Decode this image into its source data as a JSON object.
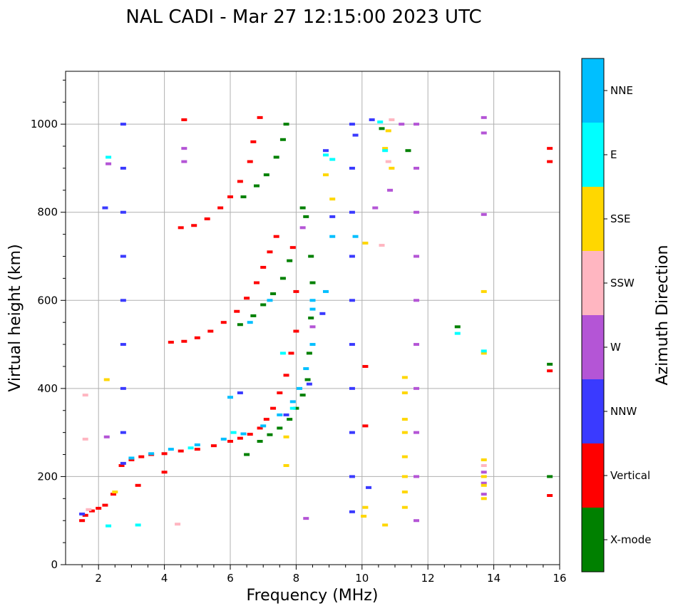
{
  "chart_data": {
    "type": "scatter",
    "title": "NAL CADI - Mar 27 12:15:00 2023 UTC",
    "xlabel": "Frequency (MHz)",
    "ylabel": "Virtual height (km)",
    "colorbar_label": "Azimuth Direction",
    "xlim": [
      1,
      16
    ],
    "ylim": [
      0,
      1120
    ],
    "xticks": [
      2,
      4,
      6,
      8,
      10,
      12,
      14,
      16
    ],
    "yticks": [
      0,
      200,
      400,
      600,
      800,
      1000
    ],
    "grid": true,
    "categories": [
      {
        "name": "X-mode",
        "color": "#008000"
      },
      {
        "name": "Vertical",
        "color": "#ff0000"
      },
      {
        "name": "NNW",
        "color": "#3a3aff"
      },
      {
        "name": "W",
        "color": "#b455d6"
      },
      {
        "name": "SSW",
        "color": "#ffb6c1"
      },
      {
        "name": "SSE",
        "color": "#ffd700"
      },
      {
        "name": "E",
        "color": "#00ffff"
      },
      {
        "name": "NNE",
        "color": "#00bfff"
      }
    ],
    "series": [
      {
        "name": "Vertical",
        "points": [
          [
            1.5,
            100
          ],
          [
            1.6,
            112
          ],
          [
            1.8,
            122
          ],
          [
            2.0,
            128
          ],
          [
            2.2,
            135
          ],
          [
            2.45,
            160
          ],
          [
            2.7,
            225
          ],
          [
            3.0,
            238
          ],
          [
            3.3,
            245
          ],
          [
            3.6,
            250
          ],
          [
            4.0,
            252
          ],
          [
            4.5,
            258
          ],
          [
            5.0,
            262
          ],
          [
            5.5,
            270
          ],
          [
            6.0,
            280
          ],
          [
            6.3,
            287
          ],
          [
            6.6,
            296
          ],
          [
            6.9,
            310
          ],
          [
            7.1,
            330
          ],
          [
            7.3,
            355
          ],
          [
            7.5,
            390
          ],
          [
            7.7,
            430
          ],
          [
            7.85,
            480
          ],
          [
            8.0,
            530
          ],
          [
            8.0,
            620
          ],
          [
            7.9,
            720
          ],
          [
            4.2,
            505
          ],
          [
            4.6,
            507
          ],
          [
            5.0,
            515
          ],
          [
            5.4,
            530
          ],
          [
            5.8,
            550
          ],
          [
            6.2,
            575
          ],
          [
            6.5,
            605
          ],
          [
            6.8,
            640
          ],
          [
            7.0,
            675
          ],
          [
            7.2,
            710
          ],
          [
            7.4,
            745
          ],
          [
            4.5,
            765
          ],
          [
            4.9,
            770
          ],
          [
            5.3,
            785
          ],
          [
            5.7,
            810
          ],
          [
            6.0,
            835
          ],
          [
            6.3,
            870
          ],
          [
            6.6,
            915
          ],
          [
            6.7,
            960
          ],
          [
            4.6,
            1010
          ],
          [
            6.9,
            1015
          ],
          [
            15.7,
            915
          ],
          [
            15.7,
            945
          ],
          [
            15.7,
            440
          ],
          [
            15.7,
            157
          ],
          [
            10.1,
            315
          ],
          [
            10.1,
            450
          ],
          [
            3.2,
            180
          ],
          [
            4.0,
            210
          ]
        ]
      },
      {
        "name": "X-mode",
        "points": [
          [
            6.5,
            250
          ],
          [
            6.9,
            280
          ],
          [
            7.2,
            295
          ],
          [
            7.5,
            310
          ],
          [
            7.8,
            330
          ],
          [
            8.0,
            355
          ],
          [
            8.2,
            385
          ],
          [
            8.35,
            420
          ],
          [
            8.4,
            480
          ],
          [
            8.45,
            560
          ],
          [
            8.5,
            640
          ],
          [
            8.45,
            700
          ],
          [
            6.3,
            545
          ],
          [
            6.7,
            565
          ],
          [
            7.0,
            590
          ],
          [
            7.3,
            615
          ],
          [
            7.6,
            650
          ],
          [
            7.8,
            690
          ],
          [
            6.4,
            835
          ],
          [
            6.8,
            860
          ],
          [
            7.1,
            885
          ],
          [
            7.4,
            925
          ],
          [
            7.6,
            965
          ],
          [
            7.7,
            1000
          ],
          [
            12.9,
            540
          ],
          [
            15.7,
            200
          ],
          [
            15.7,
            455
          ],
          [
            8.3,
            790
          ],
          [
            8.2,
            810
          ],
          [
            11.4,
            940
          ],
          [
            10.6,
            990
          ]
        ]
      },
      {
        "name": "NNW",
        "points": [
          [
            2.75,
            230
          ],
          [
            2.75,
            300
          ],
          [
            2.75,
            400
          ],
          [
            2.75,
            500
          ],
          [
            2.75,
            600
          ],
          [
            2.75,
            700
          ],
          [
            2.75,
            800
          ],
          [
            2.75,
            900
          ],
          [
            2.75,
            1000
          ],
          [
            9.7,
            120
          ],
          [
            9.7,
            200
          ],
          [
            9.7,
            300
          ],
          [
            9.7,
            400
          ],
          [
            9.7,
            500
          ],
          [
            9.7,
            600
          ],
          [
            9.7,
            700
          ],
          [
            9.7,
            800
          ],
          [
            9.7,
            900
          ],
          [
            9.7,
            1000
          ],
          [
            1.5,
            115
          ],
          [
            2.2,
            810
          ],
          [
            6.3,
            390
          ],
          [
            7.7,
            340
          ],
          [
            8.4,
            410
          ],
          [
            8.8,
            570
          ],
          [
            9.1,
            790
          ],
          [
            10.3,
            1010
          ],
          [
            10.2,
            175
          ],
          [
            8.9,
            940
          ],
          [
            9.8,
            975
          ]
        ]
      },
      {
        "name": "W",
        "points": [
          [
            11.65,
            100
          ],
          [
            11.65,
            200
          ],
          [
            11.65,
            300
          ],
          [
            11.65,
            400
          ],
          [
            11.65,
            500
          ],
          [
            11.65,
            600
          ],
          [
            11.65,
            700
          ],
          [
            11.65,
            800
          ],
          [
            11.65,
            900
          ],
          [
            11.65,
            1000
          ],
          [
            13.7,
            160
          ],
          [
            13.7,
            185
          ],
          [
            13.7,
            210
          ],
          [
            13.7,
            795
          ],
          [
            13.7,
            980
          ],
          [
            13.7,
            1015
          ],
          [
            8.2,
            765
          ],
          [
            8.3,
            105
          ],
          [
            8.5,
            540
          ],
          [
            4.6,
            915
          ],
          [
            4.6,
            945
          ],
          [
            2.3,
            910
          ],
          [
            2.25,
            290
          ],
          [
            10.85,
            850
          ],
          [
            10.4,
            810
          ],
          [
            11.2,
            1000
          ]
        ]
      },
      {
        "name": "SSW",
        "points": [
          [
            1.6,
            285
          ],
          [
            1.7,
            125
          ],
          [
            4.4,
            92
          ],
          [
            10.6,
            725
          ],
          [
            10.8,
            915
          ],
          [
            10.9,
            1010
          ],
          [
            13.7,
            225
          ],
          [
            1.6,
            385
          ]
        ]
      },
      {
        "name": "SSE",
        "points": [
          [
            11.3,
            130
          ],
          [
            11.3,
            165
          ],
          [
            11.3,
            200
          ],
          [
            11.3,
            245
          ],
          [
            11.3,
            300
          ],
          [
            11.3,
            330
          ],
          [
            11.3,
            390
          ],
          [
            11.3,
            425
          ],
          [
            13.7,
            150
          ],
          [
            13.7,
            180
          ],
          [
            13.7,
            200
          ],
          [
            13.7,
            238
          ],
          [
            13.7,
            480
          ],
          [
            13.7,
            620
          ],
          [
            7.7,
            225
          ],
          [
            7.7,
            290
          ],
          [
            8.9,
            885
          ],
          [
            9.1,
            830
          ],
          [
            10.05,
            110
          ],
          [
            10.1,
            130
          ],
          [
            10.1,
            730
          ],
          [
            10.7,
            90
          ],
          [
            10.7,
            945
          ],
          [
            10.9,
            900
          ],
          [
            10.8,
            985
          ],
          [
            2.5,
            165
          ],
          [
            2.25,
            420
          ]
        ]
      },
      {
        "name": "E",
        "points": [
          [
            2.3,
            925
          ],
          [
            2.3,
            88
          ],
          [
            3.2,
            90
          ],
          [
            8.9,
            930
          ],
          [
            9.1,
            920
          ],
          [
            12.9,
            525
          ],
          [
            13.7,
            485
          ],
          [
            10.7,
            940
          ],
          [
            10.55,
            1005
          ],
          [
            7.9,
            355
          ],
          [
            7.6,
            480
          ],
          [
            6.1,
            300
          ],
          [
            4.8,
            265
          ]
        ]
      },
      {
        "name": "NNE",
        "points": [
          [
            3.0,
            242
          ],
          [
            3.6,
            252
          ],
          [
            4.2,
            262
          ],
          [
            5.0,
            272
          ],
          [
            5.8,
            285
          ],
          [
            6.4,
            297
          ],
          [
            7.0,
            315
          ],
          [
            7.5,
            340
          ],
          [
            7.9,
            370
          ],
          [
            8.1,
            400
          ],
          [
            8.3,
            445
          ],
          [
            8.5,
            500
          ],
          [
            8.5,
            580
          ],
          [
            8.5,
            600
          ],
          [
            8.9,
            620
          ],
          [
            9.1,
            745
          ],
          [
            9.8,
            745
          ],
          [
            7.2,
            600
          ],
          [
            6.6,
            550
          ],
          [
            6.0,
            380
          ]
        ]
      }
    ]
  }
}
